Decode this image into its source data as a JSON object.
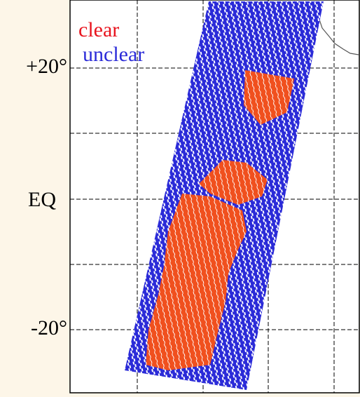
{
  "legend": {
    "clear": "clear",
    "unclear": "unclear"
  },
  "latitude_labels": [
    "+20°",
    "EQ",
    "-20°"
  ]
}
